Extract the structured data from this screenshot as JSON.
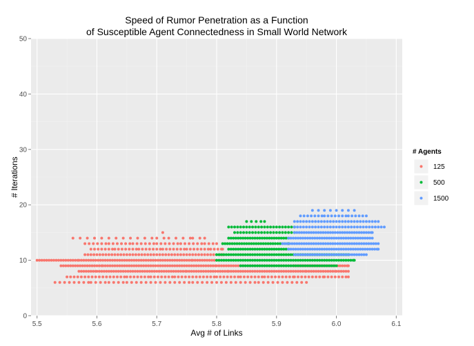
{
  "chart_data": {
    "type": "scatter",
    "title_lines": [
      "Speed of Rumor Penetration as a Function",
      "of Susceptible Agent Connectedness in Small World Network"
    ],
    "xlabel": "Avg # of Links",
    "ylabel": "# Iterations",
    "xlim": [
      5.49,
      6.11
    ],
    "ylim": [
      0,
      50
    ],
    "x_ticks": [
      "5.5",
      "5.6",
      "5.7",
      "5.8",
      "5.9",
      "6.0",
      "6.1"
    ],
    "y_ticks": [
      "0",
      "10",
      "20",
      "30",
      "40",
      "50"
    ],
    "grid": true,
    "legend": {
      "title": "# Agents",
      "position": "right",
      "entries": [
        "125",
        "500",
        "1500"
      ]
    },
    "series": [
      {
        "name": "125",
        "color": "#f8766d",
        "rows": [
          {
            "y": 6,
            "x": [
              5.53,
              5.59,
              5.62,
              5.65,
              5.69,
              5.73,
              5.76,
              5.8,
              5.84,
              5.87,
              5.91,
              5.95
            ],
            "gap": 0.008
          },
          {
            "y": 7,
            "x": [
              5.55,
              5.58,
              5.61,
              5.65,
              5.69,
              5.73,
              5.76,
              5.8,
              5.84,
              5.88,
              5.93,
              5.98,
              6.02
            ],
            "gap": 0.006
          },
          {
            "y": 8,
            "x": [
              5.57,
              5.6,
              5.64,
              5.68,
              5.72,
              5.75,
              5.79,
              5.82,
              5.86,
              5.9,
              5.95,
              6.0,
              6.02
            ],
            "gap": 0.004
          },
          {
            "y": 9,
            "x": [
              5.54,
              5.58,
              5.61,
              5.65,
              5.69,
              5.73,
              5.77,
              5.8,
              5.84,
              5.88,
              5.93,
              5.97,
              6.02
            ],
            "gap": 0.004
          },
          {
            "y": 10,
            "x": [
              5.5,
              5.57,
              5.61,
              5.65,
              5.69,
              5.73,
              5.76,
              5.8
            ],
            "gap": 0.004
          },
          {
            "y": 11,
            "x": [
              5.58,
              5.62,
              5.66,
              5.7,
              5.74,
              5.78,
              5.81
            ],
            "gap": 0.005
          },
          {
            "y": 12,
            "x": [
              5.59,
              5.63,
              5.67,
              5.71,
              5.75,
              5.79,
              5.81
            ],
            "gap": 0.006
          },
          {
            "y": 13,
            "x": [
              5.58,
              5.62,
              5.66,
              5.7,
              5.74,
              5.78,
              5.8
            ],
            "gap": 0.007
          },
          {
            "y": 14,
            "x": [
              5.56,
              5.7,
              5.72,
              5.76,
              5.78
            ],
            "gap": 0.012
          },
          {
            "y": 15,
            "x": [
              5.71
            ],
            "gap": 0.01
          }
        ]
      },
      {
        "name": "500",
        "color": "#00ba38",
        "rows": [
          {
            "y": 9,
            "x": [
              5.84,
              5.88,
              5.92,
              5.96,
              6.0
            ],
            "gap": 0.004
          },
          {
            "y": 10,
            "x": [
              5.8,
              5.84,
              5.88,
              5.92,
              5.96,
              6.0,
              6.03
            ],
            "gap": 0.004
          },
          {
            "y": 11,
            "x": [
              5.8,
              5.84,
              5.88,
              5.92,
              5.96,
              6.0,
              6.02
            ],
            "gap": 0.004
          },
          {
            "y": 12,
            "x": [
              5.82,
              5.86,
              5.9,
              5.92
            ],
            "gap": 0.004
          },
          {
            "y": 13,
            "x": [
              5.81,
              5.85,
              5.89,
              5.92
            ],
            "gap": 0.004
          },
          {
            "y": 14,
            "x": [
              5.82,
              5.86,
              5.9,
              5.92
            ],
            "gap": 0.004
          },
          {
            "y": 15,
            "x": [
              5.83,
              5.87,
              5.91,
              5.93
            ],
            "gap": 0.005
          },
          {
            "y": 16,
            "x": [
              5.82,
              5.86,
              5.9,
              5.93
            ],
            "gap": 0.005
          },
          {
            "y": 17,
            "x": [
              5.85,
              5.88
            ],
            "gap": 0.008
          }
        ]
      },
      {
        "name": "1500",
        "color": "#619cff",
        "rows": [
          {
            "y": 11,
            "x": [
              5.93,
              5.97,
              6.01,
              6.05
            ],
            "gap": 0.004
          },
          {
            "y": 12,
            "x": [
              5.92,
              5.96,
              6.0,
              6.04,
              6.07
            ],
            "gap": 0.004
          },
          {
            "y": 13,
            "x": [
              5.91,
              5.95,
              5.99,
              6.03,
              6.07
            ],
            "gap": 0.004
          },
          {
            "y": 14,
            "x": [
              5.92,
              5.96,
              6.0,
              6.04,
              6.06
            ],
            "gap": 0.004
          },
          {
            "y": 15,
            "x": [
              5.93,
              5.97,
              6.01,
              6.05,
              6.06
            ],
            "gap": 0.004
          },
          {
            "y": 16,
            "x": [
              5.93,
              5.97,
              6.01,
              6.05,
              6.08
            ],
            "gap": 0.005
          },
          {
            "y": 17,
            "x": [
              5.93,
              5.97,
              6.01,
              6.05,
              6.07
            ],
            "gap": 0.005
          },
          {
            "y": 18,
            "x": [
              5.94,
              5.98,
              6.02,
              6.05
            ],
            "gap": 0.006
          },
          {
            "y": 19,
            "x": [
              5.96,
              5.98,
              6.01,
              6.03
            ],
            "gap": 0.01
          }
        ]
      }
    ]
  }
}
